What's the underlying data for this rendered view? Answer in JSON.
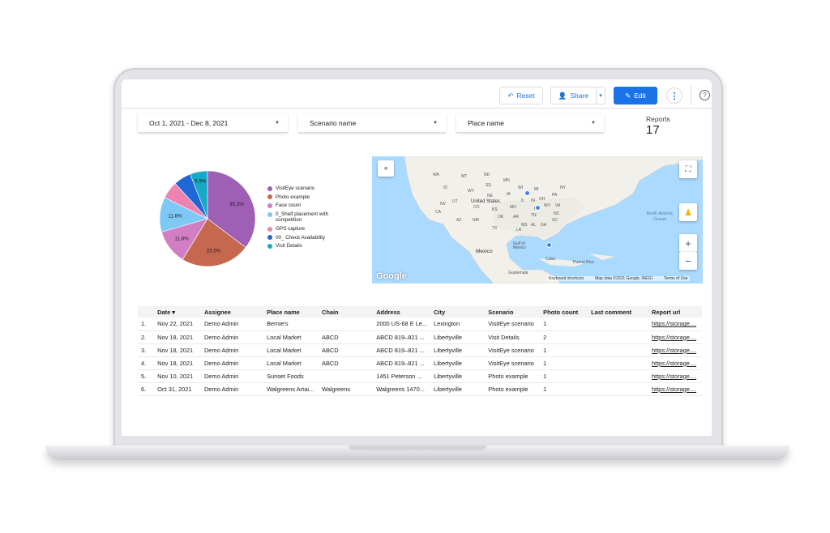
{
  "toolbar": {
    "reset_label": "Reset",
    "share_label": "Share",
    "edit_label": "Edit",
    "more_label": "⋮",
    "help_label": "?"
  },
  "filters": {
    "date": "Oct 1, 2021 - Dec 8, 2021",
    "scenario": "Scenario name",
    "place": "Place name"
  },
  "reports": {
    "label": "Reports",
    "value": "17"
  },
  "chart_data": {
    "type": "pie",
    "slices": [
      {
        "name": "VisitEye scenario",
        "value": 35.3,
        "label": "35.3%",
        "color": "#9e5fb5"
      },
      {
        "name": "Photo example",
        "value": 23.5,
        "label": "23.5%",
        "color": "#c5684f"
      },
      {
        "name": "Face count",
        "value": 11.8,
        "label": "11.8%",
        "color": "#d27ec3"
      },
      {
        "name": "0_Shelf placement with competition",
        "value": 11.8,
        "label": "11.8%",
        "color": "#7ec8f5"
      },
      {
        "name": "GPS capture",
        "value": 5.9,
        "label": "",
        "color": "#ee82b0"
      },
      {
        "name": "00_ Check Availability",
        "value": 5.9,
        "label": "",
        "color": "#1f66d6"
      },
      {
        "name": "Visit Details",
        "value": 5.9,
        "label": "5.9%",
        "color": "#17a9c6"
      }
    ]
  },
  "map": {
    "labels": [
      "WA",
      "MT",
      "ND",
      "MN",
      "ID",
      "SD",
      "WY",
      "IA",
      "NE",
      "UT",
      "CO",
      "United States",
      "KS",
      "MO",
      "OK",
      "AR",
      "AZ",
      "NM",
      "TX",
      "MS",
      "AL",
      "GA",
      "SC",
      "NC",
      "TN",
      "KY",
      "IL",
      "IN",
      "OH",
      "PA",
      "NY",
      "MI",
      "WV",
      "VA",
      "Mexico",
      "Gulf of Mexico",
      "Cuba",
      "Puerto Rico",
      "Guatemala",
      "North Atlantic Ocean",
      "LA",
      "NV",
      "CA",
      "WI"
    ],
    "google": "Google",
    "footer": [
      "Keyboard shortcuts",
      "Map data ©2021 Google, INEGI",
      "Terms of Use"
    ],
    "zoom_in": "+",
    "zoom_out": "−"
  },
  "table": {
    "columns": [
      "",
      "Date ▾",
      "Assignee",
      "Place name",
      "Chain",
      "Address",
      "City",
      "Scenario",
      "Photo count",
      "Last comment",
      "Report url"
    ],
    "rows": [
      [
        "1.",
        "Nov 22, 2021",
        "Demo Admin",
        "Bernie's",
        "",
        "2000 US-68 E Le...",
        "Lexington",
        "VisitEye scenario",
        "1",
        "",
        "https://storage...."
      ],
      [
        "2.",
        "Nov 18, 2021",
        "Demo Admin",
        "Local Market",
        "ABCD",
        "ABCD 819–821 ...",
        "Libertyville",
        "Visit Details",
        "2",
        "",
        "https://storage...."
      ],
      [
        "3.",
        "Nov 18, 2021",
        "Demo Admin",
        "Local Market",
        "ABCD",
        "ABCD 819–821 ...",
        "Libertyville",
        "VisitEye scenario",
        "1",
        "",
        "https://storage...."
      ],
      [
        "4.",
        "Nov 18, 2021",
        "Demo Admin",
        "Local Market",
        "ABCD",
        "ABCD 819–821 ...",
        "Libertyville",
        "VisitEye scenario",
        "1",
        "",
        "https://storage...."
      ],
      [
        "5.",
        "Nov 10, 2021",
        "Demo Admin",
        "Sunset Foods",
        "",
        "1451 Peterson ...",
        "Libertyville",
        "Photo example",
        "1",
        "",
        "https://storage...."
      ],
      [
        "6.",
        "Oct 31, 2021",
        "Demo Admin",
        "Walgreens Artai...",
        "Walgreens",
        "Walgreens 1470...",
        "Libertyville",
        "Photo example",
        "1",
        "",
        "https://storage...."
      ]
    ]
  }
}
